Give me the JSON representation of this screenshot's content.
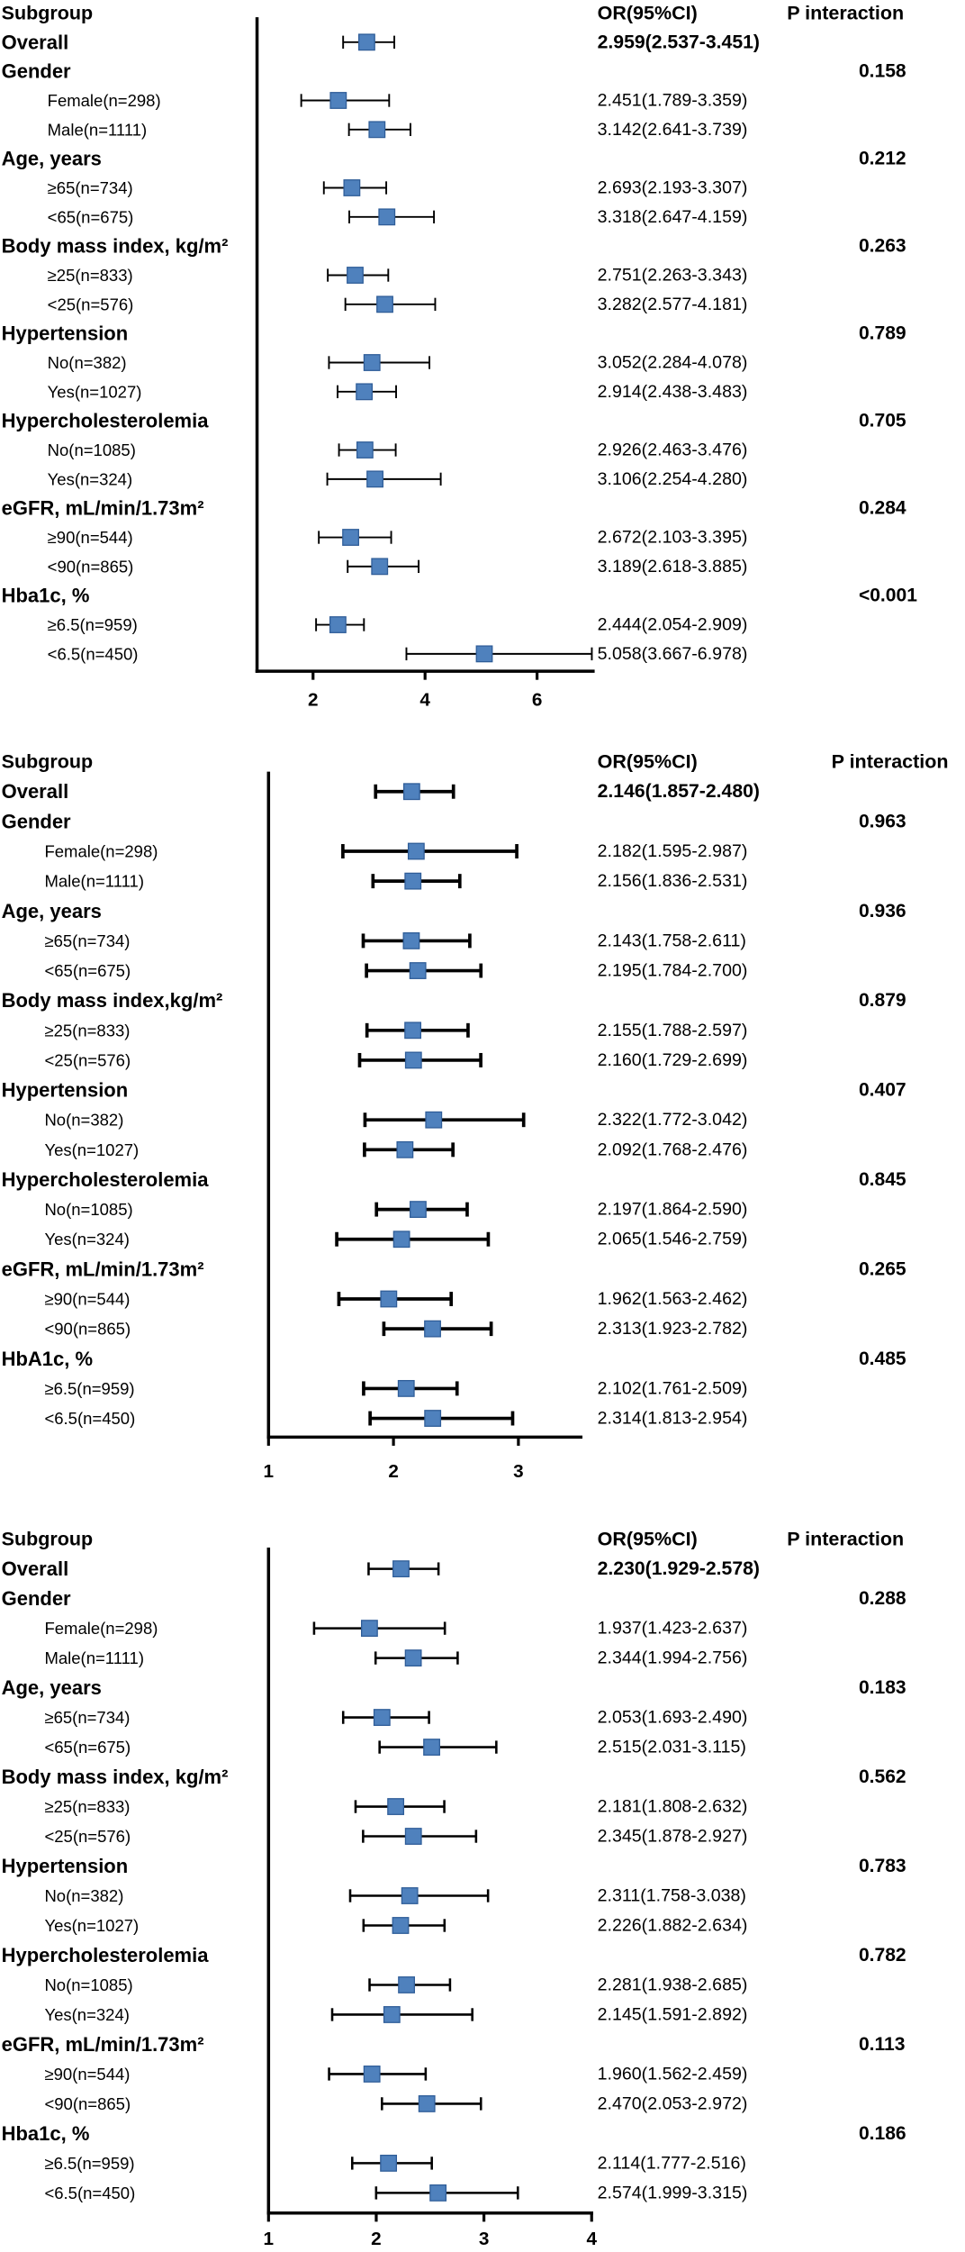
{
  "marker_color": "#4f81bd",
  "chart_data": [
    {
      "type": "scatter",
      "headers": {
        "subgroup": "Subgroup",
        "or_ci": "OR(95%CI)",
        "p_interaction": "P interaction"
      },
      "xlim": [
        1,
        7
      ],
      "xticks": [
        2,
        4,
        6
      ],
      "overall": {
        "label": "Overall",
        "or": 2.959,
        "lo": 2.537,
        "hi": 3.451,
        "ci_text": "2.959(2.537-3.451)"
      },
      "groups": [
        {
          "label": "Gender",
          "p_interaction": "0.158",
          "subgroups": [
            {
              "label": "Female(n=298)",
              "or": 2.451,
              "lo": 1.789,
              "hi": 3.359,
              "ci_text": "2.451(1.789-3.359)"
            },
            {
              "label": "Male(n=1111)",
              "or": 3.142,
              "lo": 2.641,
              "hi": 3.739,
              "ci_text": "3.142(2.641-3.739)"
            }
          ]
        },
        {
          "label": "Age, years",
          "p_interaction": "0.212",
          "subgroups": [
            {
              "label": "≥65(n=734)",
              "or": 2.693,
              "lo": 2.193,
              "hi": 3.307,
              "ci_text": "2.693(2.193-3.307)"
            },
            {
              "label": "<65(n=675)",
              "or": 3.318,
              "lo": 2.647,
              "hi": 4.159,
              "ci_text": "3.318(2.647-4.159)"
            }
          ]
        },
        {
          "label": "Body mass index, kg/m²",
          "p_interaction": "0.263",
          "subgroups": [
            {
              "label": "≥25(n=833)",
              "or": 2.751,
              "lo": 2.263,
              "hi": 3.343,
              "ci_text": "2.751(2.263-3.343)"
            },
            {
              "label": "<25(n=576)",
              "or": 3.282,
              "lo": 2.577,
              "hi": 4.181,
              "ci_text": "3.282(2.577-4.181)"
            }
          ]
        },
        {
          "label": "Hypertension",
          "p_interaction": "0.789",
          "subgroups": [
            {
              "label": "No(n=382)",
              "or": 3.052,
              "lo": 2.284,
              "hi": 4.078,
              "ci_text": "3.052(2.284-4.078)"
            },
            {
              "label": "Yes(n=1027)",
              "or": 2.914,
              "lo": 2.438,
              "hi": 3.483,
              "ci_text": "2.914(2.438-3.483)"
            }
          ]
        },
        {
          "label": "Hypercholesterolemia",
          "p_interaction": "0.705",
          "subgroups": [
            {
              "label": "No(n=1085)",
              "or": 2.926,
              "lo": 2.463,
              "hi": 3.476,
              "ci_text": "2.926(2.463-3.476)"
            },
            {
              "label": "Yes(n=324)",
              "or": 3.106,
              "lo": 2.254,
              "hi": 4.28,
              "ci_text": "3.106(2.254-4.280)"
            }
          ]
        },
        {
          "label": "eGFR, mL/min/1.73m²",
          "p_interaction": "0.284",
          "subgroups": [
            {
              "label": "≥90(n=544)",
              "or": 2.672,
              "lo": 2.103,
              "hi": 3.395,
              "ci_text": "2.672(2.103-3.395)"
            },
            {
              "label": "<90(n=865)",
              "or": 3.189,
              "lo": 2.618,
              "hi": 3.885,
              "ci_text": "3.189(2.618-3.885)"
            }
          ]
        },
        {
          "label": "Hba1c, %",
          "p_interaction": "<0.001",
          "subgroups": [
            {
              "label": "≥6.5(n=959)",
              "or": 2.444,
              "lo": 2.054,
              "hi": 2.909,
              "ci_text": "2.444(2.054-2.909)"
            },
            {
              "label": "<6.5(n=450)",
              "or": 5.058,
              "lo": 3.667,
              "hi": 6.978,
              "ci_text": "5.058(3.667-6.978)"
            }
          ]
        }
      ]
    },
    {
      "type": "scatter",
      "headers": {
        "subgroup": "Subgroup",
        "or_ci": "OR(95%CI)",
        "p_interaction": "P interaction"
      },
      "xlim": [
        1,
        3.5
      ],
      "xticks": [
        1,
        2,
        3
      ],
      "overall": {
        "label": "Overall",
        "or": 2.146,
        "lo": 1.857,
        "hi": 2.48,
        "ci_text": "2.146(1.857-2.480)"
      },
      "groups": [
        {
          "label": "Gender",
          "p_interaction": "0.963",
          "subgroups": [
            {
              "label": "Female(n=298)",
              "or": 2.182,
              "lo": 1.595,
              "hi": 2.987,
              "ci_text": "2.182(1.595-2.987)"
            },
            {
              "label": "Male(n=1111)",
              "or": 2.156,
              "lo": 1.836,
              "hi": 2.531,
              "ci_text": "2.156(1.836-2.531)"
            }
          ]
        },
        {
          "label": "Age, years",
          "p_interaction": "0.936",
          "subgroups": [
            {
              "label": "≥65(n=734)",
              "or": 2.143,
              "lo": 1.758,
              "hi": 2.611,
              "ci_text": "2.143(1.758-2.611)"
            },
            {
              "label": "<65(n=675)",
              "or": 2.195,
              "lo": 1.784,
              "hi": 2.7,
              "ci_text": "2.195(1.784-2.700)"
            }
          ]
        },
        {
          "label": "Body mass index,kg/m²",
          "p_interaction": "0.879",
          "subgroups": [
            {
              "label": "≥25(n=833)",
              "or": 2.155,
              "lo": 1.788,
              "hi": 2.597,
              "ci_text": "2.155(1.788-2.597)"
            },
            {
              "label": "<25(n=576)",
              "or": 2.16,
              "lo": 1.729,
              "hi": 2.699,
              "ci_text": "2.160(1.729-2.699)"
            }
          ]
        },
        {
          "label": "Hypertension",
          "p_interaction": "0.407",
          "subgroups": [
            {
              "label": "No(n=382)",
              "or": 2.322,
              "lo": 1.772,
              "hi": 3.042,
              "ci_text": "2.322(1.772-3.042)"
            },
            {
              "label": "Yes(n=1027)",
              "or": 2.092,
              "lo": 1.768,
              "hi": 2.476,
              "ci_text": "2.092(1.768-2.476)"
            }
          ]
        },
        {
          "label": "Hypercholesterolemia",
          "p_interaction": "0.845",
          "subgroups": [
            {
              "label": "No(n=1085)",
              "or": 2.197,
              "lo": 1.864,
              "hi": 2.59,
              "ci_text": "2.197(1.864-2.590)"
            },
            {
              "label": "Yes(n=324)",
              "or": 2.065,
              "lo": 1.546,
              "hi": 2.759,
              "ci_text": "2.065(1.546-2.759)"
            }
          ]
        },
        {
          "label": "eGFR, mL/min/1.73m²",
          "p_interaction": "0.265",
          "subgroups": [
            {
              "label": "≥90(n=544)",
              "or": 1.962,
              "lo": 1.563,
              "hi": 2.462,
              "ci_text": "1.962(1.563-2.462)"
            },
            {
              "label": "<90(n=865)",
              "or": 2.313,
              "lo": 1.923,
              "hi": 2.782,
              "ci_text": "2.313(1.923-2.782)"
            }
          ]
        },
        {
          "label": "HbA1c, %",
          "p_interaction": "0.485",
          "subgroups": [
            {
              "label": "≥6.5(n=959)",
              "or": 2.102,
              "lo": 1.761,
              "hi": 2.509,
              "ci_text": "2.102(1.761-2.509)"
            },
            {
              "label": "<6.5(n=450)",
              "or": 2.314,
              "lo": 1.813,
              "hi": 2.954,
              "ci_text": "2.314(1.813-2.954)"
            }
          ]
        }
      ]
    },
    {
      "type": "scatter",
      "headers": {
        "subgroup": "Subgroup",
        "or_ci": "OR(95%CI)",
        "p_interaction": "P interaction"
      },
      "xlim": [
        1,
        4
      ],
      "xticks": [
        1,
        2,
        3,
        4
      ],
      "overall": {
        "label": "Overall",
        "or": 2.23,
        "lo": 1.929,
        "hi": 2.578,
        "ci_text": "2.230(1.929-2.578)"
      },
      "groups": [
        {
          "label": "Gender",
          "p_interaction": "0.288",
          "subgroups": [
            {
              "label": "Female(n=298)",
              "or": 1.937,
              "lo": 1.423,
              "hi": 2.637,
              "ci_text": "1.937(1.423-2.637)"
            },
            {
              "label": "Male(n=1111)",
              "or": 2.344,
              "lo": 1.994,
              "hi": 2.756,
              "ci_text": "2.344(1.994-2.756)"
            }
          ]
        },
        {
          "label": "Age, years",
          "p_interaction": "0.183",
          "subgroups": [
            {
              "label": "≥65(n=734)",
              "or": 2.053,
              "lo": 1.693,
              "hi": 2.49,
              "ci_text": "2.053(1.693-2.490)"
            },
            {
              "label": "<65(n=675)",
              "or": 2.515,
              "lo": 2.031,
              "hi": 3.115,
              "ci_text": "2.515(2.031-3.115)"
            }
          ]
        },
        {
          "label": "Body mass index, kg/m²",
          "p_interaction": "0.562",
          "subgroups": [
            {
              "label": "≥25(n=833)",
              "or": 2.181,
              "lo": 1.808,
              "hi": 2.632,
              "ci_text": "2.181(1.808-2.632)"
            },
            {
              "label": "<25(n=576)",
              "or": 2.345,
              "lo": 1.878,
              "hi": 2.927,
              "ci_text": "2.345(1.878-2.927)"
            }
          ]
        },
        {
          "label": "Hypertension",
          "p_interaction": "0.783",
          "subgroups": [
            {
              "label": "No(n=382)",
              "or": 2.311,
              "lo": 1.758,
              "hi": 3.038,
              "ci_text": "2.311(1.758-3.038)"
            },
            {
              "label": "Yes(n=1027)",
              "or": 2.226,
              "lo": 1.882,
              "hi": 2.634,
              "ci_text": "2.226(1.882-2.634)"
            }
          ]
        },
        {
          "label": "Hypercholesterolemia",
          "p_interaction": "0.782",
          "subgroups": [
            {
              "label": "No(n=1085)",
              "or": 2.281,
              "lo": 1.938,
              "hi": 2.685,
              "ci_text": "2.281(1.938-2.685)"
            },
            {
              "label": "Yes(n=324)",
              "or": 2.145,
              "lo": 1.591,
              "hi": 2.892,
              "ci_text": "2.145(1.591-2.892)"
            }
          ]
        },
        {
          "label": "eGFR, mL/min/1.73m²",
          "p_interaction": "0.113",
          "subgroups": [
            {
              "label": "≥90(n=544)",
              "or": 1.96,
              "lo": 1.562,
              "hi": 2.459,
              "ci_text": "1.960(1.562-2.459)"
            },
            {
              "label": "<90(n=865)",
              "or": 2.47,
              "lo": 2.053,
              "hi": 2.972,
              "ci_text": "2.470(2.053-2.972)"
            }
          ]
        },
        {
          "label": "Hba1c, %",
          "p_interaction": "0.186",
          "subgroups": [
            {
              "label": "≥6.5(n=959)",
              "or": 2.114,
              "lo": 1.777,
              "hi": 2.516,
              "ci_text": "2.114(1.777-2.516)"
            },
            {
              "label": "<6.5(n=450)",
              "or": 2.574,
              "lo": 1.999,
              "hi": 3.315,
              "ci_text": "2.574(1.999-3.315)"
            }
          ]
        }
      ]
    }
  ]
}
